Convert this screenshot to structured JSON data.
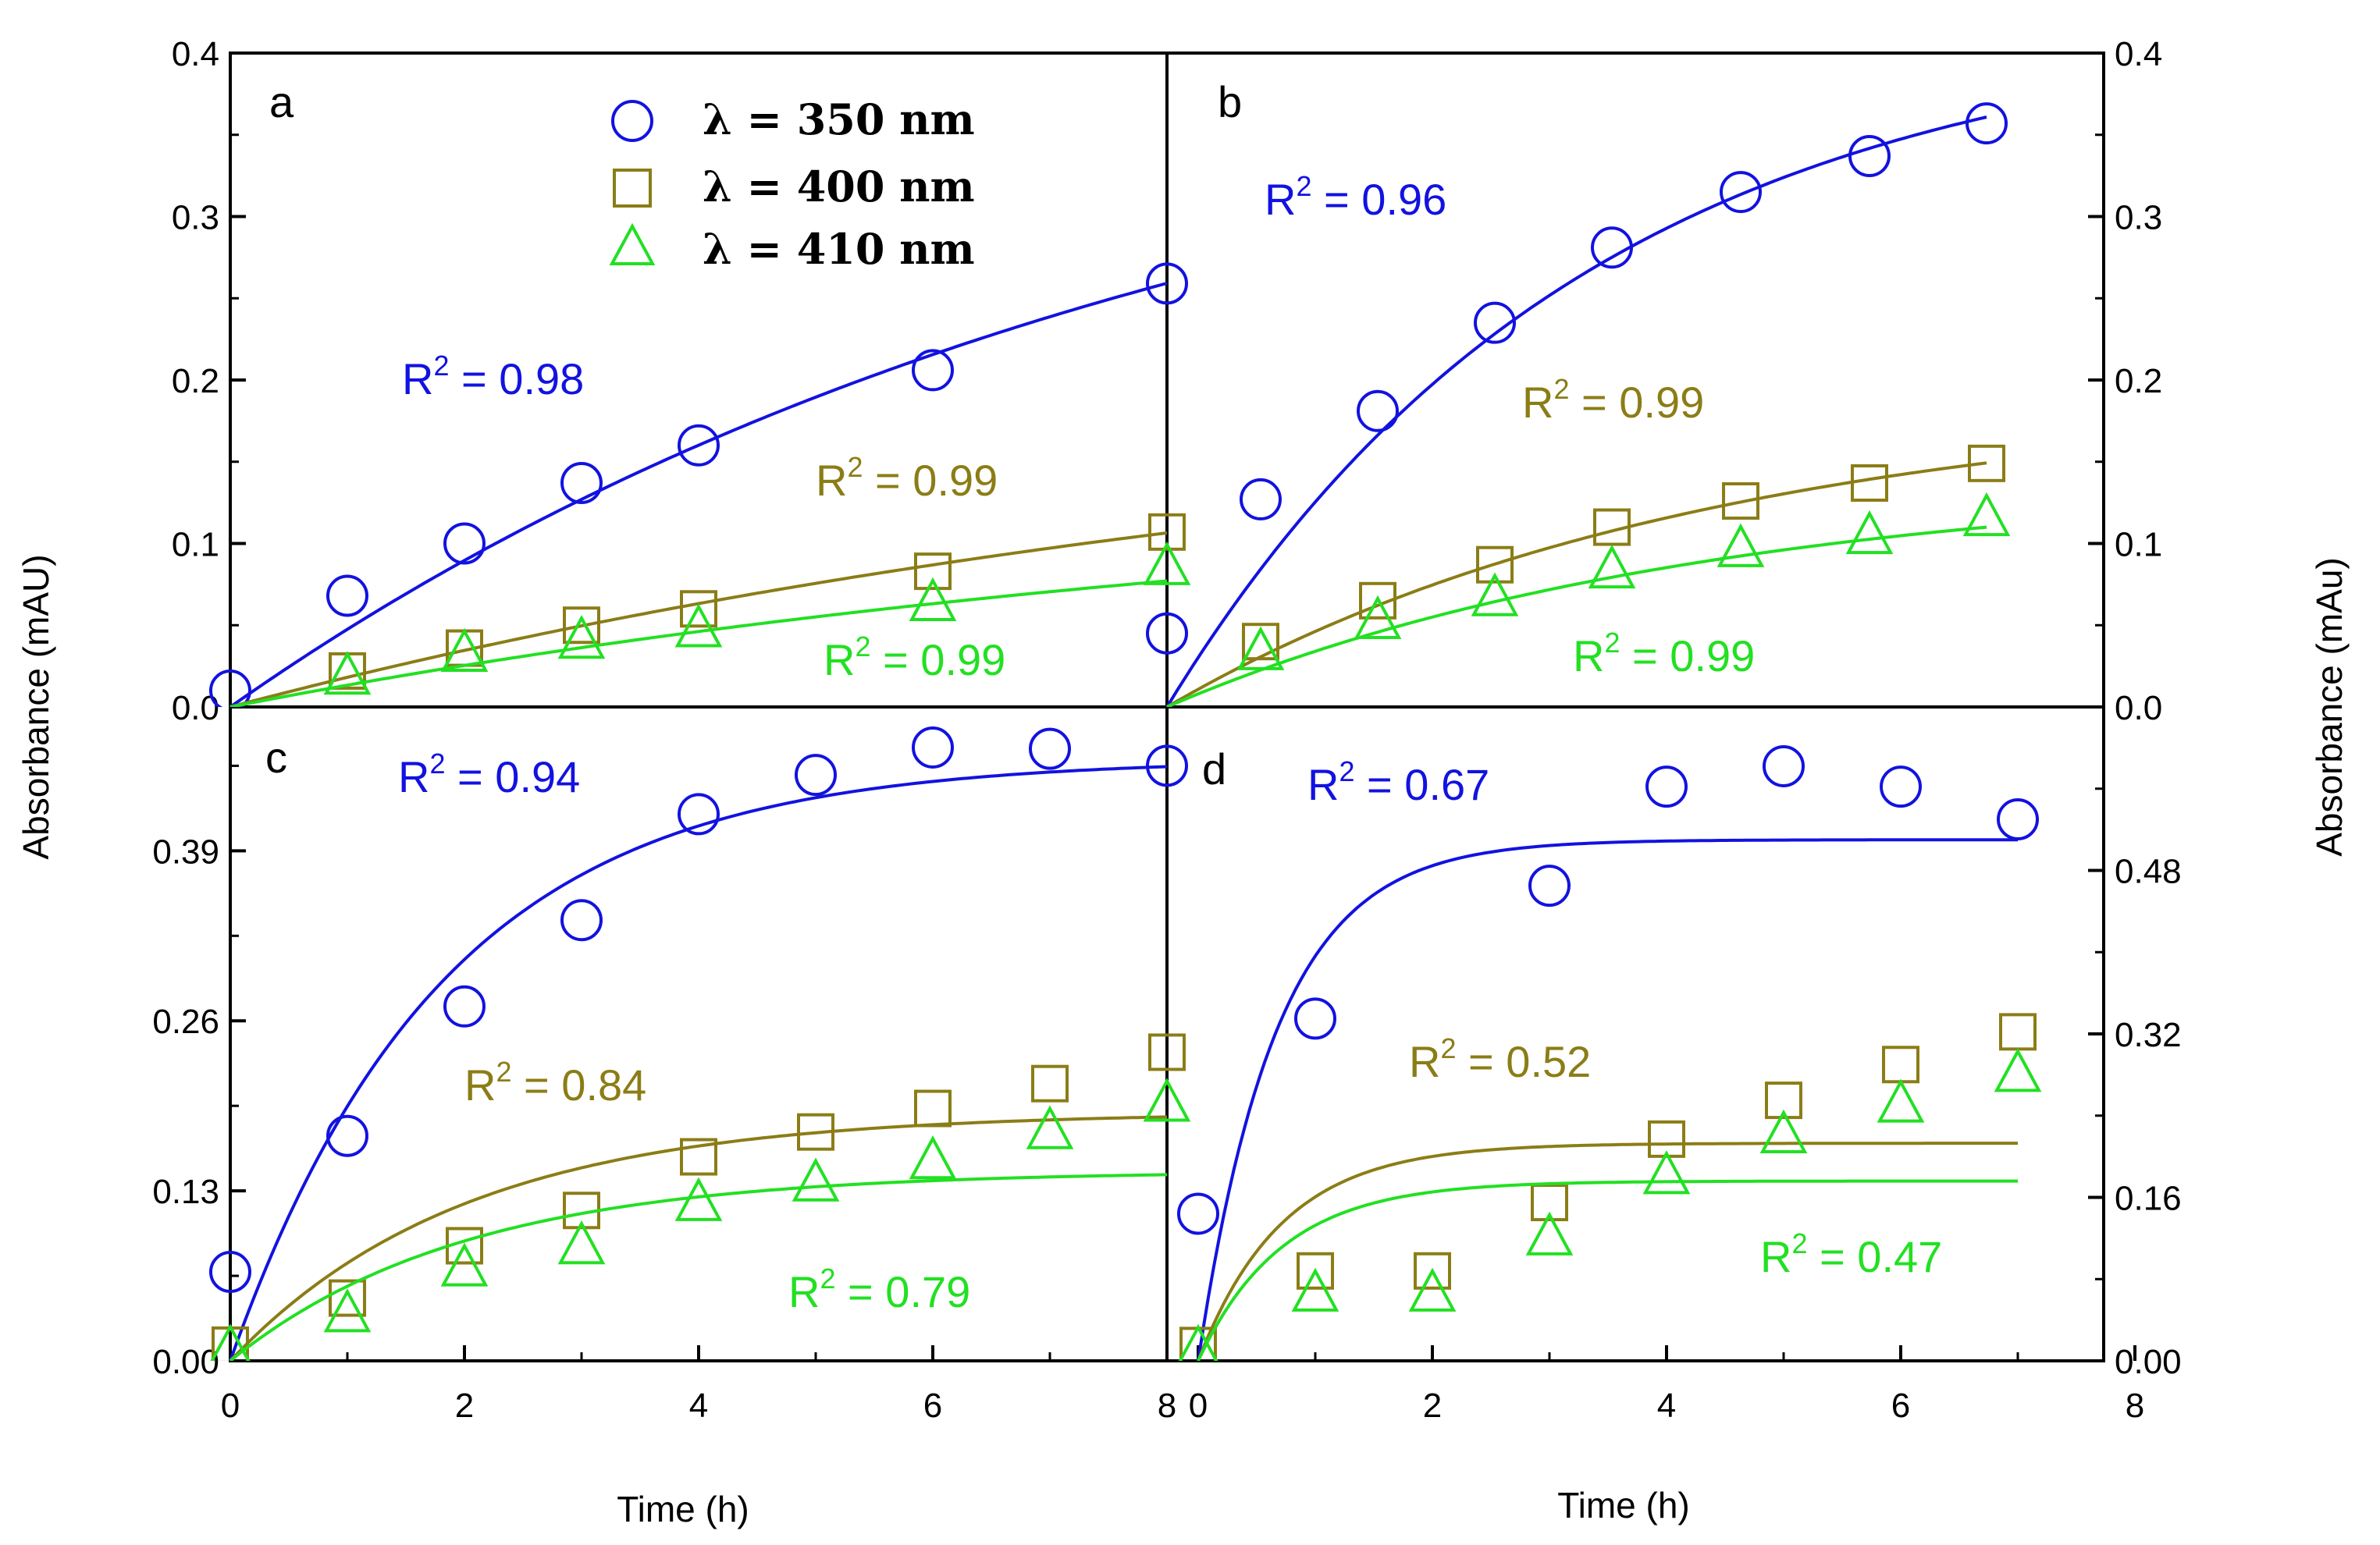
{
  "colors": {
    "series350": "#1212e0",
    "series400": "#8b7d16",
    "series410": "#22e022",
    "axis": "#000000"
  },
  "chart_data": [
    {
      "type": "scatter",
      "panel": "a",
      "xlim": [
        0,
        8
      ],
      "ylim": [
        0,
        0.4
      ],
      "yticks": [
        "0.0",
        "0.1",
        "0.2",
        "0.3",
        "0.4"
      ],
      "yaxis_side": "left",
      "series": [
        {
          "name": "λ = 350 nm",
          "marker": "circle",
          "x": [
            0,
            1,
            2,
            3,
            4,
            6,
            8
          ],
          "y": [
            0.01,
            0.068,
            0.1,
            0.137,
            0.16,
            0.206,
            0.259
          ],
          "fit": {
            "a": 0.42,
            "k": 0.12
          },
          "r2": "R2 = 0.98"
        },
        {
          "name": "λ = 400 nm",
          "marker": "square",
          "x": [
            1,
            2,
            3,
            4,
            6,
            8
          ],
          "y": [
            0.022,
            0.036,
            0.05,
            0.06,
            0.083,
            0.107
          ],
          "fit": {
            "a": 0.2,
            "k": 0.095
          },
          "r2": "R2 = 0.99"
        },
        {
          "name": "λ = 410 nm",
          "marker": "triangle",
          "x": [
            1,
            2,
            3,
            4,
            6,
            8
          ],
          "y": [
            0.018,
            0.032,
            0.04,
            0.047,
            0.063,
            0.085
          ],
          "fit": {
            "a": 0.14,
            "k": 0.1
          },
          "r2": "R2 = 0.99"
        }
      ]
    },
    {
      "type": "scatter",
      "panel": "b",
      "xlim": [
        0,
        8
      ],
      "ylim": [
        0,
        0.4
      ],
      "yticks": [
        "0.0",
        "0.1",
        "0.2",
        "0.3",
        "0.4"
      ],
      "yaxis_side": "right",
      "series": [
        {
          "name": "λ = 350 nm",
          "marker": "circle",
          "x": [
            0,
            0.8,
            1.8,
            2.8,
            3.8,
            4.9,
            6,
            7
          ],
          "y": [
            0.045,
            0.127,
            0.181,
            0.235,
            0.281,
            0.315,
            0.337,
            0.357
          ],
          "fit": {
            "a": 0.42,
            "k": 0.28
          },
          "r2": "R2 = 0.96"
        },
        {
          "name": "λ = 400 nm",
          "marker": "square",
          "x": [
            0.8,
            1.8,
            2.8,
            3.8,
            4.9,
            6,
            7
          ],
          "y": [
            0.04,
            0.065,
            0.087,
            0.11,
            0.126,
            0.137,
            0.149
          ],
          "fit": {
            "a": 0.19,
            "k": 0.22
          },
          "r2": "R2 = 0.99"
        },
        {
          "name": "λ = 410 nm",
          "marker": "triangle",
          "x": [
            0.8,
            1.8,
            2.8,
            3.8,
            4.9,
            6,
            7
          ],
          "y": [
            0.033,
            0.052,
            0.066,
            0.083,
            0.096,
            0.104,
            0.115
          ],
          "fit": {
            "a": 0.14,
            "k": 0.22
          },
          "r2": "R2 = 0.99"
        }
      ]
    },
    {
      "type": "scatter",
      "panel": "c",
      "xlim": [
        0,
        8
      ],
      "ylim": [
        0,
        0.5
      ],
      "yticks": [
        "0.00",
        "0.13",
        "0.26",
        "0.39"
      ],
      "yaxis_side": "left",
      "series": [
        {
          "name": "λ = 350 nm",
          "marker": "circle",
          "x": [
            0,
            1,
            2,
            3,
            4,
            5,
            6,
            7,
            8
          ],
          "y": [
            0.068,
            0.172,
            0.271,
            0.337,
            0.418,
            0.448,
            0.469,
            0.468,
            0.455
          ],
          "fit": {
            "a": 0.46,
            "k": 0.55
          },
          "r2": "R2 = 0.94"
        },
        {
          "name": "λ = 400 nm",
          "marker": "square",
          "x": [
            0,
            1,
            2,
            3,
            4,
            5,
            6,
            7,
            8
          ],
          "y": [
            0.012,
            0.048,
            0.088,
            0.115,
            0.156,
            0.175,
            0.193,
            0.212,
            0.236
          ],
          "fit": {
            "a": 0.19,
            "k": 0.5
          },
          "r2": "R2 = 0.84"
        },
        {
          "name": "λ = 410 nm",
          "marker": "triangle",
          "x": [
            0,
            1,
            2,
            3,
            4,
            5,
            6,
            7,
            8
          ],
          "y": [
            0.008,
            0.035,
            0.07,
            0.087,
            0.12,
            0.135,
            0.152,
            0.175,
            0.196
          ],
          "fit": {
            "a": 0.145,
            "k": 0.5
          },
          "r2": "R2 = 0.79"
        }
      ]
    },
    {
      "type": "scatter",
      "panel": "d",
      "xlim": [
        0,
        8
      ],
      "ylim": [
        0,
        0.64
      ],
      "yticks": [
        "0.00",
        "0.16",
        "0.32",
        "0.48"
      ],
      "yaxis_side": "right",
      "series": [
        {
          "name": "λ = 350 nm",
          "marker": "circle",
          "x": [
            0,
            1,
            3,
            4,
            5,
            6,
            7
          ],
          "y": [
            0.144,
            0.335,
            0.465,
            0.562,
            0.582,
            0.562,
            0.53
          ],
          "fit": {
            "a": 0.51,
            "k": 1.5,
            "x0": 0
          },
          "r2": "R2 = 0.67"
        },
        {
          "name": "λ = 400 nm",
          "marker": "square",
          "x": [
            0,
            1,
            2,
            3,
            4,
            5,
            6,
            7
          ],
          "y": [
            0.015,
            0.088,
            0.088,
            0.155,
            0.217,
            0.255,
            0.29,
            0.322
          ],
          "fit": {
            "a": 0.213,
            "k": 1.4,
            "x0": 0
          },
          "r2": "R2 = 0.52"
        },
        {
          "name": "λ = 410 nm",
          "marker": "triangle",
          "x": [
            0,
            1,
            2,
            3,
            4,
            5,
            6,
            7
          ],
          "y": [
            0.01,
            0.065,
            0.065,
            0.12,
            0.18,
            0.22,
            0.25,
            0.28
          ],
          "fit": {
            "a": 0.176,
            "k": 1.4,
            "x0": 0
          },
          "r2": "R2 = 0.47"
        }
      ]
    }
  ],
  "xticks": [
    "0",
    "2",
    "4",
    "6",
    "8"
  ],
  "xlabel_left": "Time (h)",
  "xlabel_right": "Time (h)",
  "ylabel_left": "Absorbance (mAU)",
  "ylabel_right": "Absorbance (mAu)",
  "legend": [
    {
      "label": "λ = 350 nm",
      "marker": "circle"
    },
    {
      "label": "λ = 400 nm",
      "marker": "square"
    },
    {
      "label": "λ = 410 nm",
      "marker": "triangle"
    }
  ],
  "panel_labels": [
    "a",
    "b",
    "c",
    "d"
  ]
}
